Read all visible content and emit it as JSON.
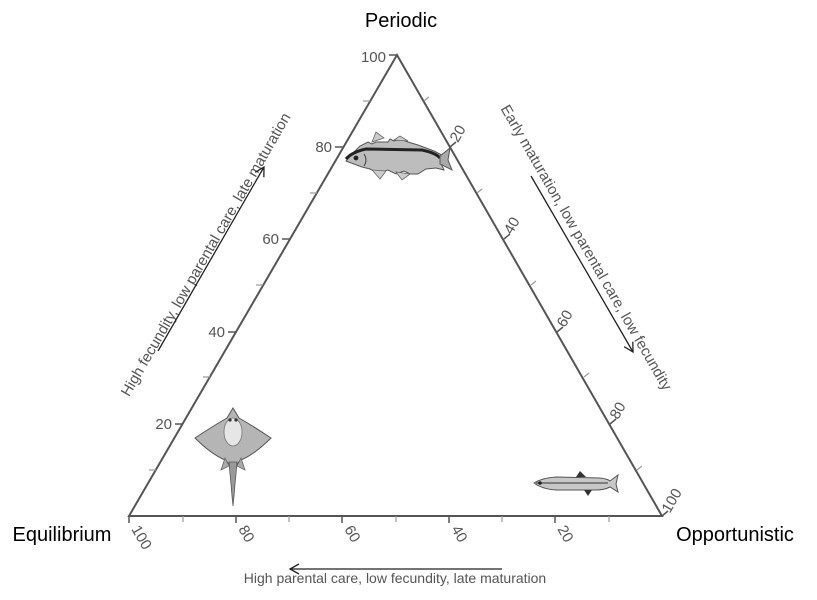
{
  "vertices": {
    "top": "Periodic",
    "left": "Equilibrium",
    "right": "Opportunistic"
  },
  "axes": {
    "left": {
      "title": "High fecundity, low parental care, late maturation",
      "ticks": [
        "20",
        "40",
        "60",
        "80",
        "100"
      ]
    },
    "right": {
      "title": "Early maturation, low parental care, low fecundity",
      "ticks": [
        "20",
        "40",
        "60",
        "80",
        "100"
      ]
    },
    "bottom": {
      "title": "High parental care, low fecundity, late maturation",
      "ticks": [
        "100",
        "80",
        "60",
        "40",
        "20"
      ]
    }
  },
  "illustrations": [
    {
      "name": "cod-fish-illustration",
      "icon": "fish-periodic"
    },
    {
      "name": "skate-illustration",
      "icon": "skate-equilibrium"
    },
    {
      "name": "smelt-fish-illustration",
      "icon": "fish-opportunistic"
    }
  ],
  "colors": {
    "triangle": "#555555",
    "text": "#555555",
    "vertex_text": "#000000"
  }
}
